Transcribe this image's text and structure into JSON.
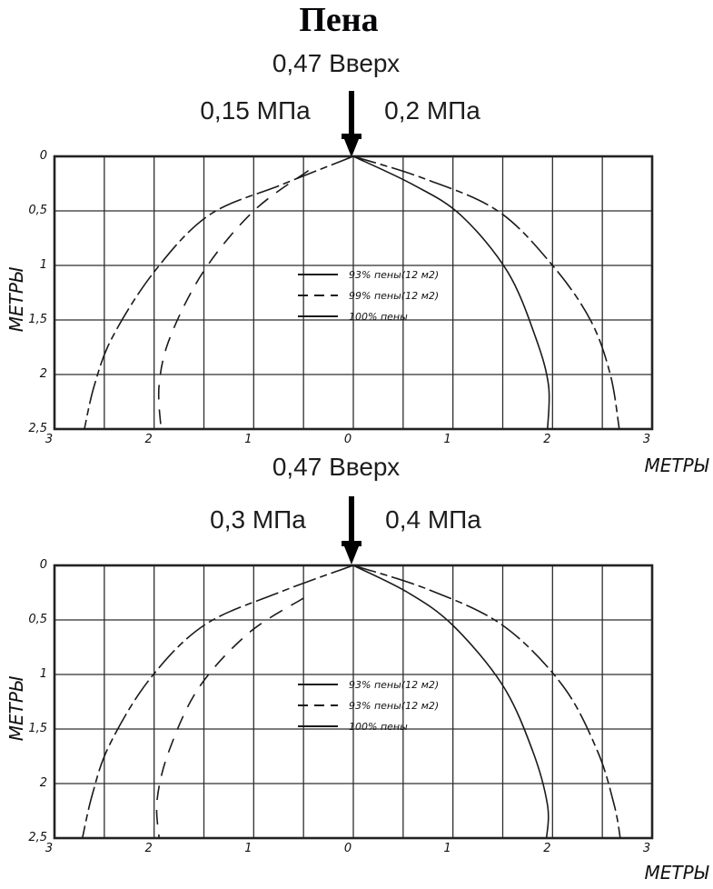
{
  "page": {
    "title": "Пена"
  },
  "colors": {
    "ink": "#1a1a1a",
    "grid": "#2e2e2e",
    "background": "#ffffff"
  },
  "chart_data": [
    {
      "type": "line",
      "header": {
        "flow_label": "0,47 Вверх",
        "left_pressure": "0,15 МПа",
        "right_pressure": "0,2 МПа"
      },
      "x_axis": {
        "label": "МЕТРЫ",
        "range": [
          -3,
          3
        ],
        "grid_step": 0.5,
        "tick_values": [
          -3,
          -2,
          -1,
          0,
          1,
          2,
          3
        ],
        "tick_labels": [
          "3",
          "2",
          "1",
          "0",
          "1",
          "2",
          "3"
        ]
      },
      "y_axis": {
        "label": "МЕТРЫ",
        "range": [
          0,
          2.5
        ],
        "grid_step": 0.5,
        "direction": "down",
        "tick_values": [
          0,
          0.5,
          1,
          1.5,
          2,
          2.5
        ],
        "tick_labels": [
          "0",
          "0,5",
          "1",
          "1,5",
          "2",
          "2,5"
        ]
      },
      "legend": [
        {
          "label": "93% пены(12 м2)",
          "style": "solid"
        },
        {
          "label": "99% пены(12 м2)",
          "style": "dashed"
        },
        {
          "label": "100% пены",
          "style": "solid"
        }
      ],
      "series": [
        {
          "name": "100% пены",
          "side": "left",
          "style": "dashdot",
          "points": [
            [
              0,
              0
            ],
            [
              -0.72,
              0.26
            ],
            [
              -1.45,
              0.54
            ],
            [
              -2.0,
              1.06
            ],
            [
              -2.42,
              1.66
            ],
            [
              -2.6,
              2.1
            ],
            [
              -2.7,
              2.5
            ]
          ]
        },
        {
          "name": "99% пены(12 м2)",
          "side": "left",
          "style": "dashed",
          "points": [
            [
              -0.45,
              0.13
            ],
            [
              -1.0,
              0.5
            ],
            [
              -1.5,
              1.05
            ],
            [
              -1.84,
              1.66
            ],
            [
              -1.95,
              2.1
            ],
            [
              -1.93,
              2.5
            ]
          ]
        },
        {
          "name": "93% пены(12 м2)",
          "side": "right",
          "style": "solid",
          "points": [
            [
              0,
              0
            ],
            [
              0.6,
              0.26
            ],
            [
              1.08,
              0.54
            ],
            [
              1.55,
              1.06
            ],
            [
              1.83,
              1.66
            ],
            [
              1.96,
              2.1
            ],
            [
              1.95,
              2.5
            ]
          ]
        },
        {
          "name": "100% пены",
          "side": "right",
          "style": "dashdot",
          "points": [
            [
              0,
              0
            ],
            [
              0.7,
              0.2
            ],
            [
              1.45,
              0.5
            ],
            [
              2.0,
              1.0
            ],
            [
              2.38,
              1.5
            ],
            [
              2.58,
              2.0
            ],
            [
              2.67,
              2.5
            ]
          ]
        }
      ]
    },
    {
      "type": "line",
      "header": {
        "flow_label": "0,47 Вверх",
        "left_pressure": "0,3 МПа",
        "right_pressure": "0,4 МПа"
      },
      "x_axis": {
        "label": "МЕТРЫ",
        "range": [
          -3,
          3
        ],
        "grid_step": 0.5,
        "tick_values": [
          -3,
          -2,
          -1,
          0,
          1,
          2,
          3
        ],
        "tick_labels": [
          "3",
          "2",
          "1",
          "0",
          "1",
          "2",
          "3"
        ]
      },
      "y_axis": {
        "label": "МЕТРЫ",
        "range": [
          0,
          2.5
        ],
        "grid_step": 0.5,
        "direction": "down",
        "tick_values": [
          0,
          0.5,
          1,
          1.5,
          2,
          2.5
        ],
        "tick_labels": [
          "0",
          "0,5",
          "1",
          "1,5",
          "2",
          "2,5"
        ]
      },
      "legend": [
        {
          "label": "93% пены(12 м2)",
          "style": "solid"
        },
        {
          "label": "93% пены(12 м2)",
          "style": "dashed"
        },
        {
          "label": "100% пены",
          "style": "solid"
        }
      ],
      "series": [
        {
          "name": "100% пены",
          "side": "left",
          "style": "dashdot",
          "points": [
            [
              0,
              0
            ],
            [
              -0.75,
              0.25
            ],
            [
              -1.5,
              0.55
            ],
            [
              -2.05,
              1.05
            ],
            [
              -2.45,
              1.65
            ],
            [
              -2.62,
              2.1
            ],
            [
              -2.72,
              2.5
            ]
          ]
        },
        {
          "name": "93% пены(12 м2)",
          "side": "left",
          "style": "dashed",
          "points": [
            [
              -0.5,
              0.3
            ],
            [
              -1.05,
              0.62
            ],
            [
              -1.55,
              1.12
            ],
            [
              -1.85,
              1.7
            ],
            [
              -1.97,
              2.15
            ],
            [
              -1.95,
              2.5
            ]
          ]
        },
        {
          "name": "93% пены(12 м2)",
          "side": "right",
          "style": "solid",
          "points": [
            [
              0,
              0
            ],
            [
              0.55,
              0.25
            ],
            [
              1.0,
              0.55
            ],
            [
              1.5,
              1.1
            ],
            [
              1.8,
              1.7
            ],
            [
              1.95,
              2.2
            ],
            [
              1.94,
              2.5
            ]
          ]
        },
        {
          "name": "100% пены",
          "side": "right",
          "style": "dashdot",
          "points": [
            [
              0,
              0
            ],
            [
              0.75,
              0.22
            ],
            [
              1.5,
              0.55
            ],
            [
              2.1,
              1.1
            ],
            [
              2.45,
              1.7
            ],
            [
              2.62,
              2.2
            ],
            [
              2.68,
              2.5
            ]
          ]
        }
      ]
    }
  ]
}
